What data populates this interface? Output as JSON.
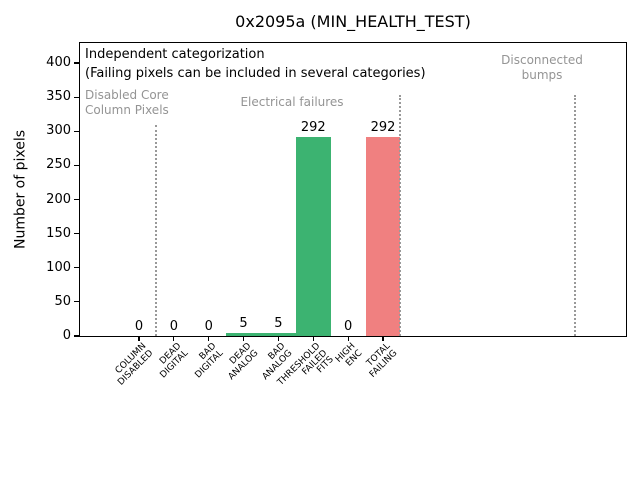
{
  "chart_data": {
    "type": "bar",
    "title": "0x2095a (MIN_HEALTH_TEST)",
    "xlabel": "",
    "ylabel": "Number of pixels",
    "ylim": [
      0,
      430
    ],
    "xlim": [
      -1.7,
      14.0
    ],
    "grid": false,
    "legend": null,
    "yticks": [
      0,
      50,
      100,
      150,
      200,
      250,
      300,
      350,
      400
    ],
    "categories": [
      "COLUMN\nDISABLED",
      "DEAD\nDIGITAL",
      "BAD\nDIGITAL",
      "DEAD\nANALOG",
      "BAD\nANALOG",
      "THRESHOLD\nFAILED\nFITS",
      "HIGH\nENC",
      "TOTAL\nFAILING"
    ],
    "values": [
      0,
      0,
      0,
      5,
      5,
      292,
      0,
      292
    ],
    "value_labels": [
      "0",
      "0",
      "0",
      "5",
      "5",
      "292",
      "0",
      "292"
    ],
    "bar_colors": [
      "#3CB371",
      "#3CB371",
      "#3CB371",
      "#3CB371",
      "#3CB371",
      "#3CB371",
      "#3CB371",
      "#F08080"
    ],
    "annotations": [
      {
        "text": "Independent categorization",
        "color": "#000000"
      },
      {
        "text": "(Failing pixels can be included in several categories)",
        "color": "#000000"
      }
    ],
    "sections": [
      {
        "label": "Disabled Core\nColumn Pixels",
        "color": "#949494"
      },
      {
        "label": "Electrical failures",
        "color": "#949494"
      },
      {
        "label": "Disconnected\nbumps",
        "color": "#949494"
      }
    ],
    "separators": [
      {
        "x": 0.5,
        "ymax_value": 309
      },
      {
        "x": 7.5,
        "ymax_value": 353
      },
      {
        "x": 12.5,
        "ymax_value": 353
      }
    ],
    "separator_style": "dotted",
    "separator_color": "#999999",
    "axis_color": "#000000",
    "background_color": "#ffffff"
  }
}
